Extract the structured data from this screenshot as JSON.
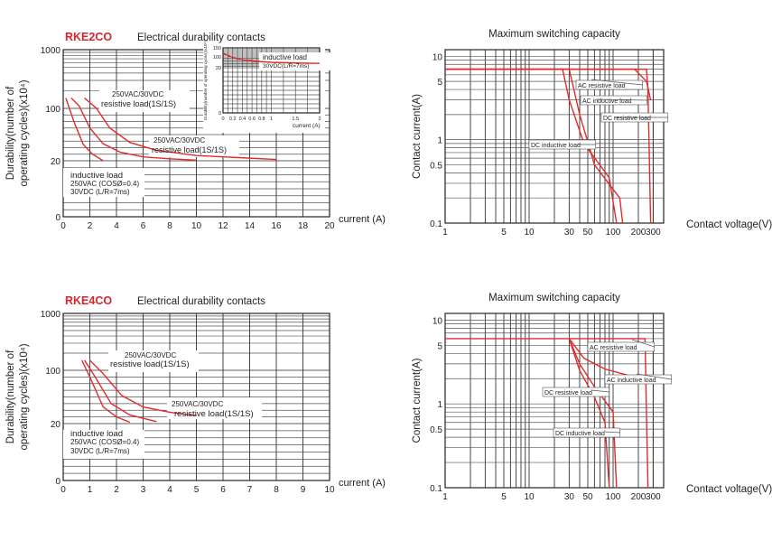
{
  "chart_data": [
    {
      "type": "line",
      "model": "RKE2CO",
      "title": "Electrical durability contacts",
      "xlabel": "current (A)",
      "ylabel": "Durability(number of operating cycles)(x10⁴)",
      "x_ticks": [
        "0",
        "2",
        "4",
        "6",
        "8",
        "10",
        "12",
        "14",
        "16",
        "18",
        "20"
      ],
      "y_ticks": [
        "0",
        "20",
        "100",
        "1000"
      ],
      "xlim": [
        0,
        20
      ],
      "series": [
        {
          "name": "250VAC/30VDC resistive load(1S/1S)",
          "x": [
            1.6,
            2.5,
            3.5,
            5,
            7,
            10,
            16
          ],
          "y": [
            150,
            100,
            70,
            48,
            36,
            28,
            22
          ]
        },
        {
          "name": "250VAC/30VDC resistive load(1S/1S)",
          "x": [
            0.6,
            1.2,
            2,
            3,
            4.3,
            6,
            8,
            10
          ],
          "y": [
            150,
            110,
            70,
            46,
            33,
            26,
            23,
            21
          ]
        },
        {
          "name": "inductive load",
          "x": [
            0.2,
            0.8,
            1.5,
            2.2,
            3
          ],
          "y": [
            150,
            80,
            45,
            30,
            20
          ]
        }
      ],
      "annotations": [
        {
          "text": "250VAC/30VDC"
        },
        {
          "text": "resistive load(1S/1S)"
        },
        {
          "text": "250VAC/30VDC"
        },
        {
          "text": "resistive load(1S/1S)"
        },
        {
          "text": "inductive load"
        },
        {
          "text": "250VAC (COSØ=0.4)"
        },
        {
          "text": "30VDC (L/R=7ms)"
        }
      ],
      "inset": {
        "xlabel": "current (A)",
        "ylabel": "Durability(number of operating cycles)(x10⁴)",
        "x_ticks": [
          "0",
          "0.2",
          "0.4",
          "0.6",
          "0.8",
          "1",
          "1.5",
          "2"
        ],
        "y_ticks": [
          "0",
          "20",
          "100",
          "150"
        ],
        "annotation_1": "inductive load",
        "annotation_2": "30VDC(L/R=7ms)",
        "series": [
          {
            "name": "inductive load 30VDC(L/R=7ms)",
            "x": [
              0,
              0.2,
              0.4,
              0.6,
              1,
              1.5,
              2
            ],
            "y": [
              120,
              95,
              80,
              70,
              60,
              55,
              52
            ]
          }
        ]
      }
    },
    {
      "type": "line",
      "model": "RKE2CO",
      "title": "Maximum switching capacity",
      "xlabel": "Contact voltage(V)",
      "ylabel": "Contact current(A)",
      "x_ticks": [
        "1",
        "5",
        "10",
        "30",
        "50",
        "100",
        "200",
        "300"
      ],
      "y_ticks": [
        "0.1",
        "0.5",
        "1",
        "5",
        "10"
      ],
      "log_x": true,
      "log_y": true,
      "annotations": [
        {
          "text": "AC resistive load"
        },
        {
          "text": "AC inductive load"
        },
        {
          "text": "DC resistive load"
        },
        {
          "text": "DC inductive load"
        }
      ],
      "series": [
        {
          "name": "AC resistive load",
          "x": [
            1,
            250,
            260,
            280
          ],
          "y": [
            7,
            7,
            4,
            0.1
          ]
        },
        {
          "name": "AC inductive load",
          "x": [
            1,
            180,
            250,
            280
          ],
          "y": [
            7,
            7,
            5,
            3
          ]
        },
        {
          "name": "DC resistive load",
          "x": [
            1,
            30,
            40,
            60,
            120,
            130
          ],
          "y": [
            7,
            7,
            2,
            0.5,
            0.2,
            0.1
          ]
        },
        {
          "name": "DC inductive load",
          "x": [
            1,
            25,
            30,
            45,
            90,
            110
          ],
          "y": [
            7,
            7,
            3,
            0.9,
            0.35,
            0.1
          ]
        }
      ]
    },
    {
      "type": "line",
      "model": "RKE4CO",
      "title": "Electrical durability contacts",
      "xlabel": "current (A)",
      "ylabel": "Durability(number of operating cycles)(x10⁴)",
      "x_ticks": [
        "0",
        "1",
        "2",
        "3",
        "4",
        "5",
        "6",
        "7",
        "8",
        "9",
        "10"
      ],
      "y_ticks": [
        "0",
        "20",
        "100",
        "1000"
      ],
      "xlim": [
        0,
        10
      ],
      "series": [
        {
          "name": "250VAC/30VDC resistive load(1S/1S)",
          "x": [
            1,
            1.5,
            2.2,
            3,
            4,
            5
          ],
          "y": [
            150,
            95,
            62,
            45,
            37,
            32
          ]
        },
        {
          "name": "250VAC/30VDC resistive load(1S/1S)",
          "x": [
            0.8,
            1.2,
            1.8,
            2.5,
            3.5
          ],
          "y": [
            150,
            90,
            50,
            33,
            23
          ]
        },
        {
          "name": "inductive load",
          "x": [
            0.7,
            1,
            1.5,
            2,
            2.5
          ],
          "y": [
            150,
            90,
            45,
            30,
            22
          ]
        }
      ],
      "annotations": [
        {
          "text": "250VAC/30VDC"
        },
        {
          "text": "resistive load(1S/1S)"
        },
        {
          "text": "250VAC/30VDC"
        },
        {
          "text": "resistive load(1S/1S)"
        },
        {
          "text": "inductive load"
        },
        {
          "text": "250VAC (COSØ=0.4)"
        },
        {
          "text": "30VDC (L/R=7ms)"
        }
      ]
    },
    {
      "type": "line",
      "model": "RKE4CO",
      "title": "Maximum switching capacity",
      "xlabel": "Contact voltage(V)",
      "ylabel": "Contact current(A)",
      "x_ticks": [
        "1",
        "5",
        "10",
        "30",
        "50",
        "100",
        "200",
        "300"
      ],
      "y_ticks": [
        "0.1",
        "0.5",
        "1",
        "5",
        "10"
      ],
      "log_x": true,
      "log_y": true,
      "annotations": [
        {
          "text": "AC resistive load"
        },
        {
          "text": "AC inductive load"
        },
        {
          "text": "DC resistive load"
        },
        {
          "text": "DC inductive load"
        }
      ],
      "series": [
        {
          "name": "AC resistive load",
          "x": [
            1,
            240,
            260
          ],
          "y": [
            6,
            6,
            0.1
          ]
        },
        {
          "name": "AC inductive load",
          "x": [
            30,
            45,
            80,
            150,
            230
          ],
          "y": [
            6,
            3.5,
            2.6,
            2.2,
            2
          ]
        },
        {
          "name": "DC resistive load",
          "x": [
            30,
            40,
            60,
            100,
            110
          ],
          "y": [
            6,
            3,
            1.6,
            0.8,
            0.1
          ]
        },
        {
          "name": "DC inductive load",
          "x": [
            30,
            40,
            60,
            80,
            90
          ],
          "y": [
            6,
            2.5,
            1.2,
            0.6,
            0.1
          ]
        }
      ]
    }
  ],
  "colors": {
    "curve": "#e02b2b",
    "model_label": "#d9262c",
    "grid": "#333333"
  }
}
